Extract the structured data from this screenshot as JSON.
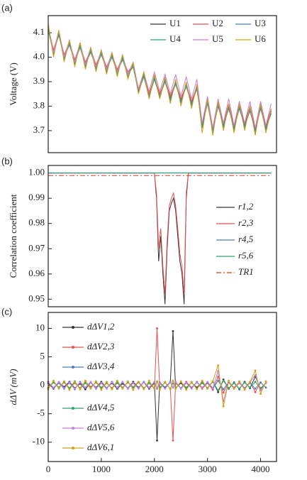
{
  "chart_data": [
    {
      "type": "line",
      "panel_label": "(a)",
      "ylabel": "Voltage (V)",
      "legend": "upper right",
      "legend_columns": 3,
      "markers": false,
      "xlim": [
        0,
        4300
      ],
      "ylim": [
        3.61,
        4.17
      ],
      "yticks": [
        3.7,
        3.8,
        3.9,
        {
          "value": 4,
          "label": "4.0"
        },
        4.1
      ],
      "x": [
        0,
        100,
        200,
        300,
        400,
        500,
        600,
        700,
        800,
        900,
        1000,
        1100,
        1200,
        1300,
        1400,
        1500,
        1600,
        1700,
        1800,
        1900,
        2000,
        2100,
        2200,
        2300,
        2400,
        2500,
        2600,
        2700,
        2800,
        2900,
        3000,
        3100,
        3200,
        3300,
        3400,
        3500,
        3600,
        3700,
        3800,
        3900,
        4000,
        4100,
        4200
      ],
      "series": [
        {
          "name": "U1",
          "color": "#333333",
          "values": [
            4.12,
            4.02,
            4.1,
            4.0,
            4.06,
            3.98,
            4.05,
            3.97,
            4.03,
            3.96,
            4.02,
            3.95,
            4.01,
            3.94,
            4.0,
            3.93,
            3.97,
            3.86,
            3.93,
            3.84,
            3.92,
            3.84,
            3.91,
            3.83,
            3.9,
            3.82,
            3.89,
            3.81,
            3.88,
            3.72,
            3.82,
            3.7,
            3.81,
            3.72,
            3.8,
            3.71,
            3.8,
            3.72,
            3.79,
            3.7,
            3.8,
            3.71,
            3.78
          ]
        },
        {
          "name": "U2",
          "color": "#e8504f",
          "values": [
            4.12,
            4.03,
            4.1,
            4.01,
            4.06,
            3.99,
            4.05,
            3.98,
            4.03,
            3.97,
            4.02,
            3.96,
            4.01,
            3.95,
            4.0,
            3.94,
            3.97,
            3.87,
            3.93,
            3.85,
            3.92,
            3.85,
            3.91,
            3.84,
            3.9,
            3.83,
            3.89,
            3.82,
            3.88,
            3.73,
            3.83,
            3.71,
            3.82,
            3.73,
            3.81,
            3.72,
            3.81,
            3.73,
            3.8,
            3.71,
            3.81,
            3.72,
            3.79
          ]
        },
        {
          "name": "U3",
          "color": "#4a7fc0",
          "values": [
            4.11,
            4.02,
            4.09,
            4.0,
            4.05,
            3.98,
            4.04,
            3.97,
            4.02,
            3.96,
            4.01,
            3.95,
            4.0,
            3.94,
            3.99,
            3.93,
            3.96,
            3.86,
            3.92,
            3.84,
            3.91,
            3.84,
            3.9,
            3.83,
            3.89,
            3.82,
            3.88,
            3.81,
            3.87,
            3.72,
            3.81,
            3.7,
            3.8,
            3.72,
            3.79,
            3.71,
            3.79,
            3.72,
            3.78,
            3.7,
            3.79,
            3.71,
            3.77
          ]
        },
        {
          "name": "U4",
          "color": "#2aa36b",
          "values": [
            4.12,
            4.01,
            4.1,
            3.99,
            4.06,
            3.97,
            4.05,
            3.96,
            4.03,
            3.95,
            4.02,
            3.94,
            4.01,
            3.93,
            4.0,
            3.92,
            3.97,
            3.85,
            3.93,
            3.83,
            3.92,
            3.83,
            3.91,
            3.82,
            3.9,
            3.81,
            3.89,
            3.8,
            3.88,
            3.71,
            3.82,
            3.69,
            3.81,
            3.71,
            3.8,
            3.7,
            3.8,
            3.71,
            3.79,
            3.69,
            3.8,
            3.7,
            3.78
          ]
        },
        {
          "name": "U5",
          "color": "#c77dd9",
          "values": [
            4.13,
            4.02,
            4.11,
            4.0,
            4.07,
            3.98,
            4.06,
            3.97,
            4.04,
            3.96,
            4.03,
            3.95,
            4.02,
            3.94,
            4.01,
            3.93,
            3.98,
            3.87,
            3.94,
            3.86,
            3.94,
            3.86,
            3.93,
            3.85,
            3.93,
            3.84,
            3.92,
            3.83,
            3.91,
            3.73,
            3.84,
            3.71,
            3.83,
            3.73,
            3.83,
            3.72,
            3.82,
            3.73,
            3.82,
            3.71,
            3.82,
            3.72,
            3.81
          ]
        },
        {
          "name": "U6",
          "color": "#d4a017",
          "values": [
            4.14,
            4.0,
            4.11,
            3.98,
            4.07,
            3.96,
            4.06,
            3.95,
            4.04,
            3.94,
            4.03,
            3.93,
            4.02,
            3.92,
            4.01,
            3.91,
            3.98,
            3.85,
            3.94,
            3.83,
            3.93,
            3.83,
            3.92,
            3.81,
            3.91,
            3.8,
            3.9,
            3.79,
            3.89,
            3.69,
            3.83,
            3.68,
            3.82,
            3.7,
            3.81,
            3.69,
            3.81,
            3.7,
            3.8,
            3.68,
            3.81,
            3.69,
            3.79
          ]
        }
      ]
    },
    {
      "type": "line",
      "panel_label": "(b)",
      "ylabel": "Correlation coefficient",
      "legend": "center right",
      "legend_columns": 1,
      "markers": false,
      "xlim": [
        0,
        4300
      ],
      "ylim": [
        0.947,
        1.003
      ],
      "yticks": [
        {
          "value": 1,
          "label": "1.00"
        },
        0.99,
        0.98,
        0.97,
        0.96,
        0.95
      ],
      "x": [
        0,
        2000,
        2040,
        2080,
        2120,
        2160,
        2200,
        2240,
        2280,
        2320,
        2360,
        2400,
        2440,
        2480,
        2520,
        2560,
        2600,
        2640,
        4200
      ],
      "series": [
        {
          "name": "r1,2",
          "color": "#333333",
          "style": "solid",
          "values": [
            1,
            1,
            0.99,
            0.965,
            0.975,
            0.96,
            0.948,
            0.97,
            0.985,
            0.988,
            0.99,
            0.985,
            0.975,
            0.965,
            0.96,
            0.948,
            0.99,
            1,
            1
          ]
        },
        {
          "name": "r2,3",
          "color": "#e8504f",
          "style": "solid",
          "values": [
            1,
            1,
            0.992,
            0.97,
            0.978,
            0.963,
            0.952,
            0.973,
            0.987,
            0.99,
            0.992,
            0.987,
            0.978,
            0.968,
            0.963,
            0.952,
            0.992,
            1,
            1
          ]
        },
        {
          "name": "r4,5",
          "color": "#4a7fc0",
          "style": "solid",
          "values": [
            1,
            1,
            1,
            1,
            1,
            1,
            1,
            1,
            1,
            1,
            1,
            1,
            1,
            1,
            1,
            1,
            1,
            1,
            1
          ]
        },
        {
          "name": "r5,6",
          "color": "#2aa36b",
          "style": "solid",
          "values": [
            1,
            1,
            1,
            1,
            1,
            1,
            1,
            1,
            1,
            1,
            1,
            1,
            1,
            1,
            1,
            1,
            1,
            1,
            1
          ]
        },
        {
          "name": "TR1",
          "color": "#d33a2c",
          "style": "dash-dot",
          "values": [
            0.999,
            0.999,
            0.999,
            0.999,
            0.999,
            0.999,
            0.999,
            0.999,
            0.999,
            0.999,
            0.999,
            0.999,
            0.999,
            0.999,
            0.999,
            0.999,
            0.999,
            0.999,
            0.999
          ]
        }
      ]
    },
    {
      "type": "line",
      "panel_label": "(c)",
      "ylabel": "dΔV (mV)",
      "legend": "left",
      "legend_columns": 1,
      "markers": true,
      "xlim": [
        0,
        4300
      ],
      "ylim": [
        -13.4,
        12.8
      ],
      "xticks": [
        0,
        1000,
        2000,
        3000,
        4000
      ],
      "yticks": [
        10,
        5,
        0,
        -5,
        -10
      ],
      "x": [
        0,
        100,
        200,
        300,
        400,
        500,
        600,
        700,
        800,
        900,
        1000,
        1100,
        1200,
        1300,
        1400,
        1500,
        1600,
        1700,
        1800,
        1900,
        2000,
        2050,
        2100,
        2200,
        2300,
        2350,
        2400,
        2500,
        2600,
        2700,
        2800,
        2900,
        3000,
        3100,
        3200,
        3300,
        3400,
        3500,
        3600,
        3700,
        3800,
        3900,
        4000,
        4100
      ],
      "series": [
        {
          "name": "dΔV1,2",
          "color": "#333333",
          "values": [
            0.4,
            -0.6,
            0.5,
            -0.3,
            0.6,
            -0.5,
            0.3,
            -0.7,
            0.5,
            -0.4,
            0.6,
            -0.5,
            0.4,
            -0.6,
            0.3,
            -0.5,
            0.6,
            -0.4,
            0.5,
            -0.6,
            0.4,
            -9.7,
            0.5,
            -0.4,
            0.6,
            9.5,
            -0.5,
            0.4,
            -0.6,
            0.5,
            -0.4,
            0.6,
            -0.5,
            0.7,
            -1.2,
            1.0,
            -0.6,
            0.5,
            -0.7,
            0.6,
            -0.5,
            1.5,
            -0.6,
            0.4
          ]
        },
        {
          "name": "dΔV2,3",
          "color": "#e8504f",
          "values": [
            -0.5,
            0.6,
            -0.4,
            0.5,
            -0.6,
            0.4,
            -0.5,
            0.7,
            -0.3,
            0.5,
            -0.6,
            0.4,
            -0.5,
            0.6,
            -0.4,
            0.5,
            -0.3,
            0.6,
            -0.5,
            0.4,
            -0.6,
            10,
            -0.4,
            0.5,
            -0.6,
            -9.7,
            0.4,
            -0.5,
            0.6,
            -0.4,
            0.5,
            -0.6,
            0.4,
            -0.8,
            1.5,
            -1.3,
            0.5,
            -0.6,
            0.4,
            -0.5,
            0.6,
            -1.2,
            0.5,
            -0.4
          ]
        },
        {
          "name": "dΔV3,4",
          "color": "#4a7fc0",
          "values": [
            0.6,
            -0.5,
            0.4,
            -0.6,
            0.5,
            -0.7,
            0.6,
            -0.4,
            0.5,
            -0.6,
            0.4,
            -0.5,
            0.6,
            -0.4,
            0.5,
            -0.6,
            0.4,
            -0.5,
            0.6,
            -0.4,
            0.5,
            -0.6,
            0.4,
            -0.5,
            0.6,
            -0.4,
            0.5,
            -0.6,
            0.4,
            -0.5,
            0.6,
            -0.4,
            0.5,
            -0.6,
            0.8,
            -0.7,
            0.5,
            -0.4,
            0.6,
            -0.5,
            0.4,
            -0.6,
            0.5,
            -0.4
          ]
        },
        {
          "name": "dΔV4,5",
          "color": "#2aa36b",
          "values": [
            -0.6,
            0.5,
            -0.4,
            0.6,
            -0.5,
            0.7,
            -0.6,
            0.4,
            -0.5,
            0.6,
            -0.4,
            0.5,
            -0.6,
            0.4,
            -0.5,
            0.6,
            -0.4,
            0.5,
            -0.6,
            0.4,
            -0.5,
            0.6,
            -0.4,
            0.5,
            -0.6,
            0.4,
            -0.5,
            0.6,
            -0.4,
            0.5,
            -0.6,
            0.4,
            -0.5,
            0.6,
            -0.9,
            0.8,
            -0.5,
            0.4,
            -0.6,
            0.5,
            -0.4,
            0.6,
            -0.5,
            0.4
          ]
        },
        {
          "name": "dΔV5,6",
          "color": "#c77dd9",
          "values": [
            0.5,
            -0.4,
            0.6,
            -0.5,
            0.4,
            -0.6,
            0.5,
            -0.4,
            0.6,
            -0.5,
            0.4,
            -0.6,
            0.5,
            -0.4,
            0.6,
            -0.5,
            0.4,
            -0.6,
            0.5,
            -0.4,
            0.6,
            -0.5,
            0.4,
            -0.6,
            0.5,
            -0.4,
            0.6,
            -0.5,
            0.4,
            -0.6,
            0.5,
            -0.4,
            0.6,
            -0.5,
            2.5,
            -2.8,
            0.6,
            -0.5,
            0.4,
            -0.6,
            0.5,
            1.8,
            -0.9,
            0.4
          ]
        },
        {
          "name": "dΔV6,1",
          "color": "#d4a017",
          "values": [
            -0.7,
            0.8,
            -0.6,
            0.7,
            -0.8,
            0.6,
            -0.7,
            0.8,
            -0.6,
            0.7,
            -0.8,
            0.6,
            -0.7,
            0.8,
            -0.6,
            0.7,
            -0.8,
            0.6,
            -0.7,
            0.8,
            -0.6,
            0.7,
            -0.8,
            0.6,
            -0.7,
            0.8,
            -0.6,
            0.7,
            -0.8,
            0.6,
            -0.7,
            0.8,
            -0.6,
            0.7,
            3.5,
            -3.7,
            0.8,
            -0.6,
            0.7,
            -0.8,
            0.6,
            2.6,
            -1.5,
            0.7
          ]
        }
      ]
    }
  ]
}
